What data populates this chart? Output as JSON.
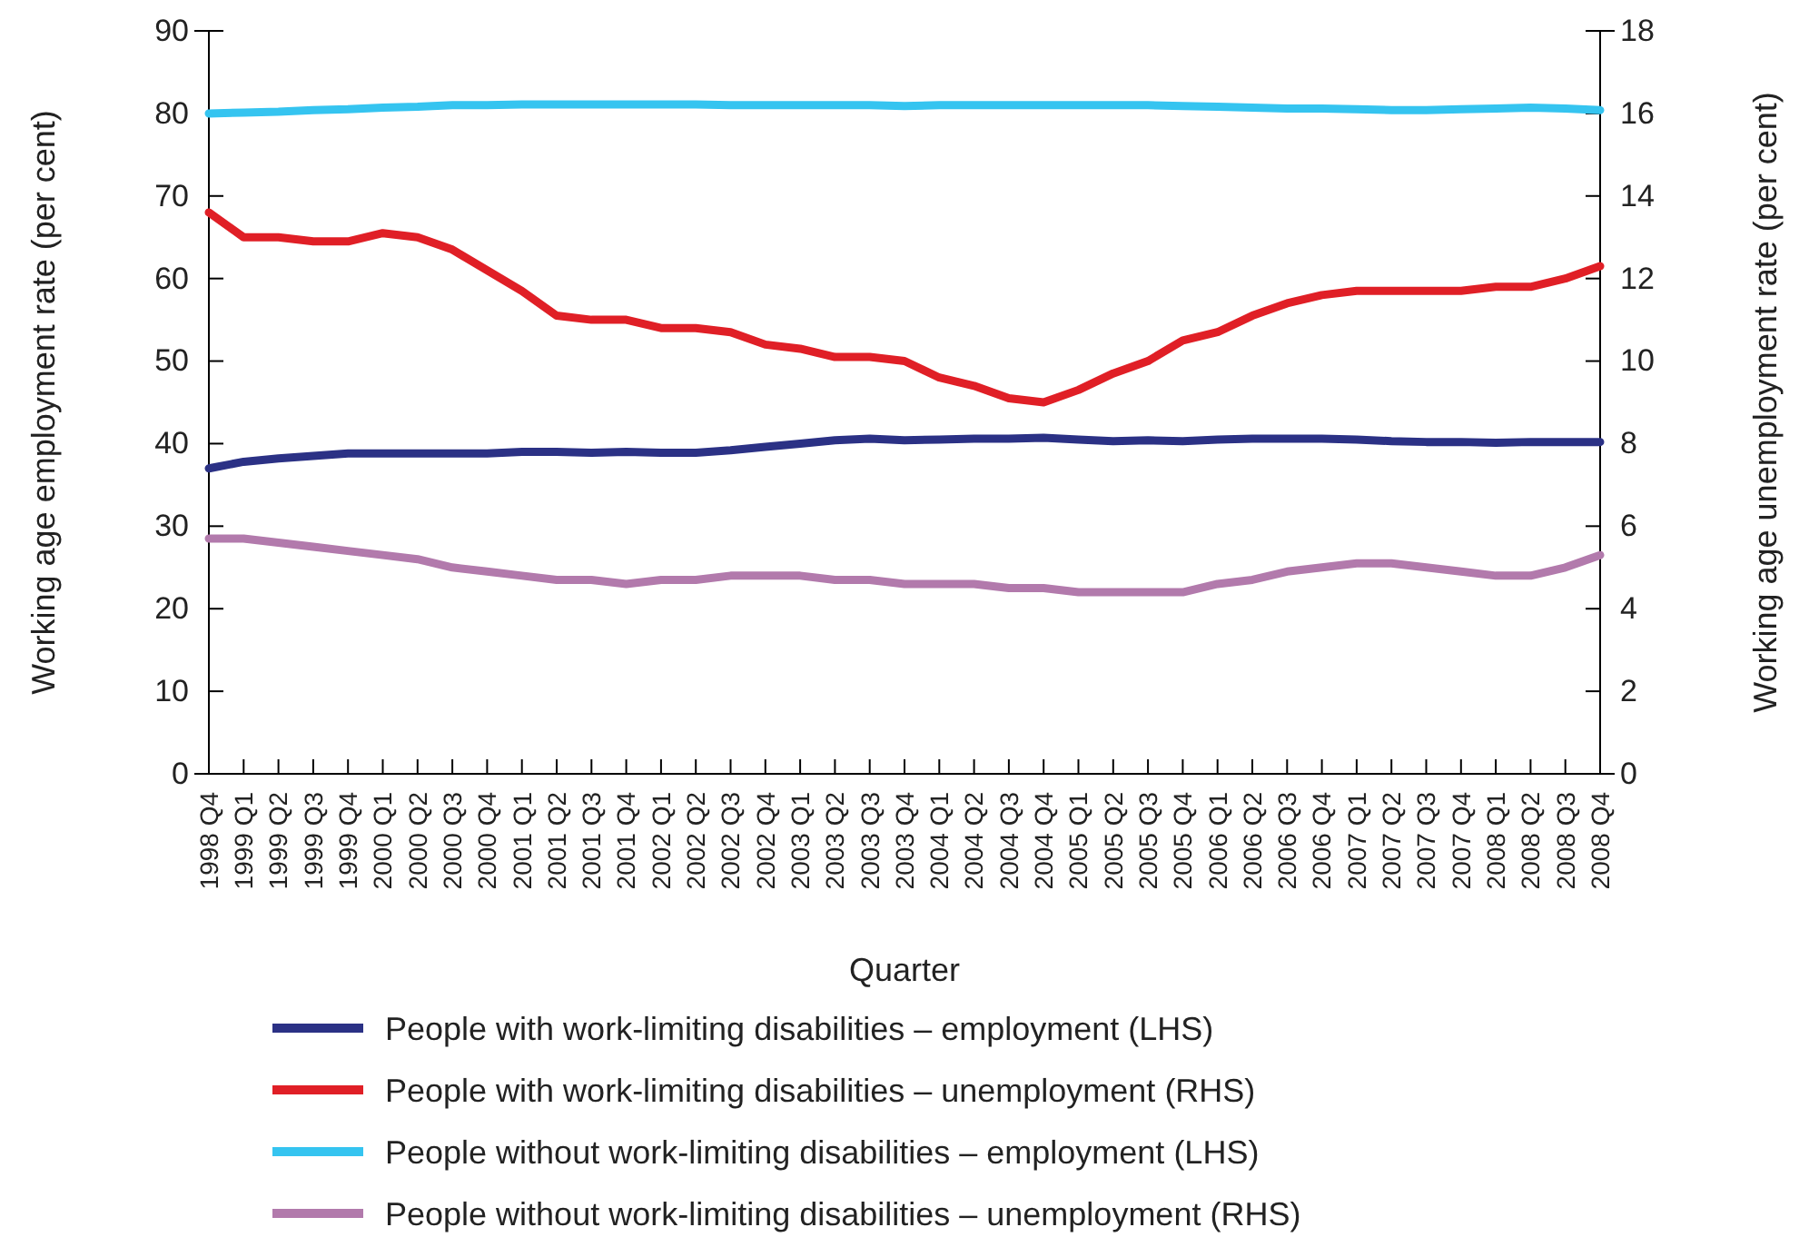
{
  "chart_data": {
    "type": "line",
    "xlabel": "Quarter",
    "ylabel": "Working age employment rate (per cent)",
    "y2label": "Working age unemployment rate (per cent)",
    "categories": [
      "1998 Q4",
      "1999 Q1",
      "1999 Q2",
      "1999 Q3",
      "1999 Q4",
      "2000 Q1",
      "2000 Q2",
      "2000 Q3",
      "2000 Q4",
      "2001 Q1",
      "2001 Q2",
      "2001 Q3",
      "2001 Q4",
      "2002 Q1",
      "2002 Q2",
      "2002 Q3",
      "2002 Q4",
      "2003 Q1",
      "2003 Q2",
      "2003 Q3",
      "2003 Q4",
      "2004 Q1",
      "2004 Q2",
      "2004 Q3",
      "2004 Q4",
      "2005 Q1",
      "2005 Q2",
      "2005 Q3",
      "2005 Q4",
      "2006 Q1",
      "2006 Q2",
      "2006 Q3",
      "2006 Q4",
      "2007 Q1",
      "2007 Q2",
      "2007 Q3",
      "2007 Q4",
      "2008 Q1",
      "2008 Q2",
      "2008 Q3",
      "2008 Q4"
    ],
    "series": [
      {
        "name": "People with work-limiting disabilities – employment (LHS)",
        "color": "#2b3185",
        "values": [
          37,
          37.8,
          38.2,
          38.5,
          38.8,
          38.8,
          38.8,
          38.8,
          38.8,
          39,
          39,
          38.9,
          39,
          38.9,
          38.9,
          39.2,
          39.6,
          40,
          40.4,
          40.6,
          40.4,
          40.5,
          40.6,
          40.6,
          40.7,
          40.5,
          40.3,
          40.4,
          40.3,
          40.5,
          40.6,
          40.6,
          40.6,
          40.5,
          40.3,
          40.2,
          40.2,
          40.1,
          40.2,
          40.2,
          40.2
        ]
      },
      {
        "name": "People with work-limiting disabilities – unemployment (RHS)",
        "color": "#e01f26",
        "axis": "y2",
        "values": [
          13.6,
          13,
          13,
          12.9,
          12.9,
          13.1,
          13,
          12.7,
          12.2,
          11.7,
          11.1,
          11,
          11,
          10.8,
          10.8,
          10.7,
          10.4,
          10.3,
          10.1,
          10.1,
          10,
          9.6,
          9.4,
          9.1,
          9,
          9.3,
          9.7,
          10,
          10.5,
          10.7,
          11.1,
          11.4,
          11.6,
          11.7,
          11.7,
          11.7,
          11.7,
          11.8,
          11.8,
          12,
          12.3
        ]
      },
      {
        "name": "People without work-limiting disabilities – employment (LHS)",
        "color": "#35c4f0",
        "values": [
          80,
          80.1,
          80.2,
          80.4,
          80.5,
          80.7,
          80.8,
          81,
          81,
          81.1,
          81.1,
          81.1,
          81.1,
          81.1,
          81.1,
          81,
          81,
          81,
          81,
          81,
          80.9,
          81,
          81,
          81,
          81,
          81,
          81,
          81,
          80.9,
          80.8,
          80.7,
          80.6,
          80.6,
          80.5,
          80.4,
          80.4,
          80.5,
          80.6,
          80.7,
          80.6,
          80.4
        ]
      },
      {
        "name": "People without work-limiting disabilities – unemployment (RHS)",
        "color": "#b27aac",
        "axis": "y2",
        "values": [
          5.7,
          5.7,
          5.6,
          5.5,
          5.4,
          5.3,
          5.2,
          5,
          4.9,
          4.8,
          4.7,
          4.7,
          4.6,
          4.7,
          4.7,
          4.8,
          4.8,
          4.8,
          4.7,
          4.7,
          4.6,
          4.6,
          4.6,
          4.5,
          4.5,
          4.4,
          4.4,
          4.4,
          4.4,
          4.6,
          4.7,
          4.9,
          5,
          5.1,
          5.1,
          5,
          4.9,
          4.8,
          4.8,
          5,
          5.3
        ]
      }
    ],
    "ylim": [
      0,
      90
    ],
    "yticks": [
      0,
      10,
      20,
      30,
      40,
      50,
      60,
      70,
      80,
      90
    ],
    "y2lim": [
      0,
      18
    ],
    "y2ticks": [
      0,
      2,
      4,
      6,
      8,
      10,
      12,
      14,
      16,
      18
    ],
    "grid": false,
    "legend": "bottom",
    "marker": "none",
    "line_style": "solid"
  }
}
